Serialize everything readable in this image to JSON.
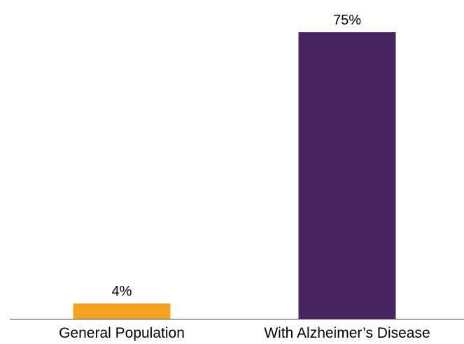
{
  "chart_data": {
    "type": "bar",
    "categories": [
      "General Population",
      "With Alzheimer’s Disease"
    ],
    "values": [
      4,
      75
    ],
    "data_labels": [
      "4%",
      "75%"
    ],
    "colors": [
      "#f5a31f",
      "#4a2461"
    ],
    "ylim": [
      0,
      75
    ],
    "title": "",
    "xlabel": "",
    "ylabel": "",
    "grid": false,
    "legend": "none"
  }
}
